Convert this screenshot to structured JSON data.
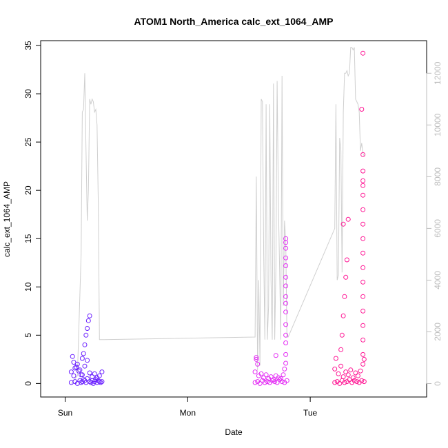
{
  "chart_data": {
    "type": "scatter",
    "title": "ATOM1 North_America calc_ext_1064_AMP",
    "xlabel": "Date",
    "ylabel": "calc_ext_1064_AMP",
    "x_ticks": [
      "Sun",
      "Mon",
      "Tue"
    ],
    "xlim": [
      -1.2,
      1.95
    ],
    "ylim": [
      -1.4,
      35.5
    ],
    "y_ticks": [
      0,
      5,
      10,
      15,
      20,
      25,
      30,
      35
    ],
    "y2lim": [
      -520,
      13260
    ],
    "y2_ticks": [
      0,
      2000,
      4000,
      6000,
      8000,
      10000,
      12000
    ],
    "grid": false,
    "colors": {
      "series1": "#6a1fff",
      "series2": "#e32cf4",
      "series3": "#ff1493",
      "line": "#cfcfcf",
      "axis": "#000000",
      "right_axis": "#bdbdbd"
    },
    "series": [
      {
        "x": [
          -0.95,
          -0.92,
          -0.9,
          -0.88,
          -0.87,
          -0.86,
          -0.85,
          -0.84,
          -0.83,
          -0.82,
          -0.8,
          -0.79,
          -0.78,
          -0.77,
          -0.76,
          -0.75,
          -0.74,
          -0.73,
          -0.72,
          -0.71,
          -0.7,
          -0.95,
          -0.93,
          -0.92,
          -0.9,
          -0.88,
          -0.86,
          -0.84,
          -0.82,
          -0.8,
          -0.78,
          -0.76,
          -0.74,
          -0.72,
          -0.7,
          -0.86,
          -0.85,
          -0.84,
          -0.83,
          -0.82,
          -0.81,
          -0.8,
          -0.94,
          -0.93,
          -0.91,
          -0.89,
          -0.87
        ],
        "y": [
          0.1,
          0.2,
          0.0,
          0.3,
          0.1,
          0.2,
          0.4,
          0.3,
          0.1,
          0.5,
          0.2,
          0.1,
          0.3,
          0.0,
          0.2,
          0.4,
          0.1,
          0.3,
          0.2,
          0.1,
          0.2,
          1.2,
          0.8,
          1.6,
          2.0,
          1.4,
          0.9,
          1.8,
          2.4,
          1.1,
          0.7,
          1.0,
          0.6,
          0.8,
          1.2,
          2.6,
          3.1,
          4.0,
          5.0,
          5.7,
          6.5,
          7.0,
          2.8,
          2.2,
          1.7,
          1.3,
          0.9
        ]
      },
      {
        "x": [
          0.55,
          0.57,
          0.59,
          0.61,
          0.63,
          0.65,
          0.67,
          0.69,
          0.71,
          0.73,
          0.75,
          0.77,
          0.79,
          0.81,
          0.55,
          0.56,
          0.58,
          0.6,
          0.62,
          0.64,
          0.66,
          0.68,
          0.7,
          0.72,
          0.74,
          0.76,
          0.78,
          0.79,
          0.8,
          0.8,
          0.8,
          0.8,
          0.8,
          0.8,
          0.8,
          0.8,
          0.8,
          0.8,
          0.8,
          0.8,
          0.8,
          0.8,
          0.8,
          0.72,
          0.56,
          0.57
        ],
        "y": [
          0.1,
          0.2,
          0.0,
          0.3,
          0.1,
          0.2,
          0.1,
          0.3,
          0.2,
          0.1,
          0.4,
          0.2,
          0.1,
          0.3,
          1.2,
          2.5,
          0.8,
          1.0,
          0.6,
          0.9,
          0.5,
          0.7,
          0.4,
          0.8,
          0.6,
          0.5,
          0.9,
          1.5,
          2.1,
          3.0,
          4.2,
          5.0,
          6.1,
          7.4,
          8.3,
          9.0,
          10.1,
          11.0,
          12.2,
          13.0,
          14.0,
          14.6,
          15.0,
          2.9,
          2.7,
          2.0
        ]
      },
      {
        "x": [
          1.2,
          1.22,
          1.24,
          1.26,
          1.28,
          1.3,
          1.32,
          1.34,
          1.36,
          1.38,
          1.4,
          1.42,
          1.44,
          1.2,
          1.21,
          1.23,
          1.25,
          1.27,
          1.29,
          1.31,
          1.33,
          1.35,
          1.37,
          1.39,
          1.41,
          1.43,
          1.25,
          1.26,
          1.27,
          1.28,
          1.29,
          1.3,
          1.31,
          1.27,
          1.43,
          1.43,
          1.43,
          1.43,
          1.43,
          1.43,
          1.43,
          1.43,
          1.43,
          1.43,
          1.43,
          1.43,
          1.43,
          1.43,
          1.43,
          1.43,
          1.42,
          1.43,
          1.44
        ],
        "y": [
          0.1,
          0.2,
          0.0,
          0.3,
          0.1,
          0.2,
          0.4,
          0.1,
          0.3,
          0.2,
          0.1,
          0.3,
          0.2,
          1.5,
          2.6,
          1.0,
          1.8,
          0.7,
          1.2,
          0.9,
          1.4,
          0.6,
          1.1,
          0.8,
          1.3,
          2.0,
          3.5,
          5.0,
          7.0,
          9.0,
          11.0,
          12.8,
          17.0,
          16.5,
          3.0,
          4.5,
          6.0,
          7.5,
          9.0,
          10.5,
          12.0,
          13.5,
          15.0,
          16.5,
          18.0,
          19.5,
          21.0,
          22.0,
          23.7,
          20.5,
          28.4,
          34.2,
          2.5
        ]
      }
    ],
    "line_series": {
      "axis": "right",
      "x": [
        -0.95,
        -0.9,
        -0.87,
        -0.86,
        -0.85,
        -0.84,
        -0.83,
        -0.82,
        -0.81,
        -0.8,
        -0.79,
        -0.78,
        -0.77,
        -0.76,
        -0.75,
        -0.74,
        -0.73,
        -0.72,
        -0.71,
        -0.7,
        -0.69,
        -0.68,
        0.55,
        0.56,
        0.57,
        0.58,
        0.59,
        0.6,
        0.61,
        0.62,
        0.63,
        0.64,
        0.65,
        0.66,
        0.67,
        0.68,
        0.69,
        0.7,
        0.71,
        0.72,
        0.73,
        0.74,
        0.75,
        0.76,
        0.77,
        0.78,
        0.79,
        0.8,
        0.81,
        0.82,
        1.2,
        1.21,
        1.22,
        1.23,
        1.24,
        1.25,
        1.26,
        1.27,
        1.28,
        1.29,
        1.3,
        1.31,
        1.32,
        1.33,
        1.34,
        1.35,
        1.36,
        1.37,
        1.38,
        1.39,
        1.4,
        1.41,
        1.42,
        1.43,
        1.44
      ],
      "y": [
        0,
        300,
        5000,
        10500,
        10600,
        12000,
        9000,
        6300,
        7500,
        11000,
        10800,
        11000,
        10900,
        10500,
        10600,
        10000,
        7000,
        1700,
        1700,
        1700,
        1700,
        1700,
        1800,
        8000,
        500,
        4000,
        700,
        11000,
        10900,
        5000,
        1700,
        10800,
        1700,
        3000,
        10800,
        4000,
        1700,
        11600,
        1700,
        4500,
        11700,
        7000,
        4400,
        1700,
        11900,
        3000,
        6300,
        5500,
        1800,
        1800,
        6000,
        10800,
        4000,
        4200,
        9500,
        9000,
        4300,
        10500,
        12000,
        12000,
        12100,
        11900,
        12000,
        13000,
        13000,
        12900,
        13000,
        11000,
        10900,
        10800,
        10500,
        9000,
        9300,
        8900,
        8800
      ]
    }
  }
}
